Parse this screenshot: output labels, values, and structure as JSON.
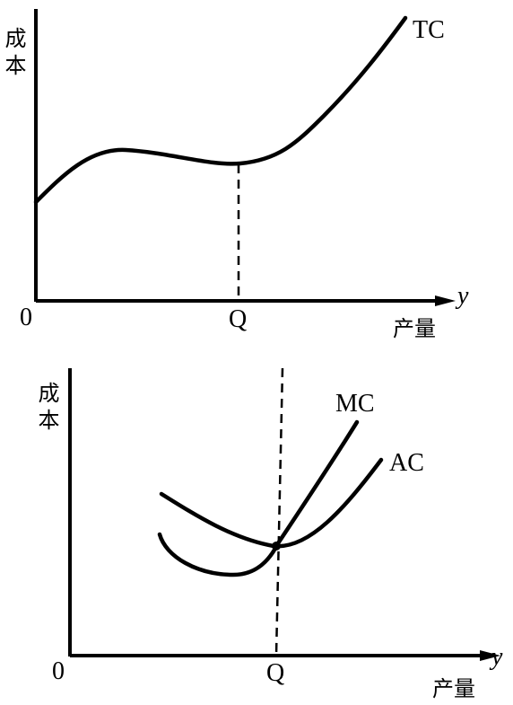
{
  "panels": [
    {
      "y_label": "成本",
      "origin": "0",
      "x_mark": "Q",
      "x_axis": "y",
      "x_label": "产量",
      "curves": [
        "TC"
      ]
    },
    {
      "y_label": "成本",
      "origin": "0",
      "x_mark": "Q",
      "x_axis": "y",
      "x_label": "产量",
      "curves": [
        "MC",
        "AC"
      ]
    }
  ]
}
